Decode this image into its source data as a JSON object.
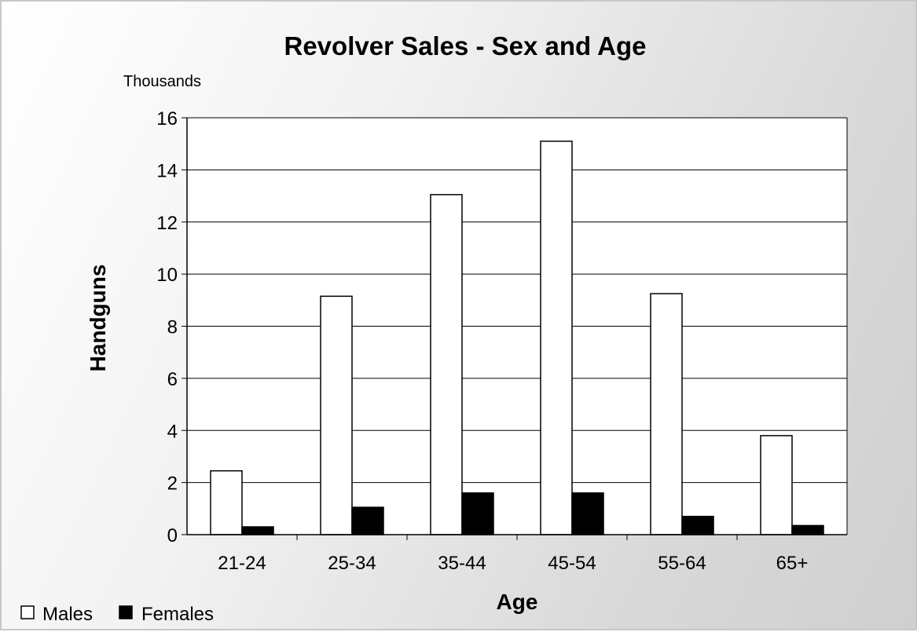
{
  "chart_data": {
    "type": "bar",
    "title": "Revolver Sales - Sex and Age",
    "unit_label": "Thousands",
    "xlabel": "Age",
    "ylabel": "Handguns",
    "categories": [
      "21-24",
      "25-34",
      "35-44",
      "45-54",
      "55-64",
      "65+"
    ],
    "series": [
      {
        "name": "Males",
        "values": [
          2.45,
          9.15,
          13.05,
          15.1,
          9.25,
          3.8
        ],
        "color": "#ffffff"
      },
      {
        "name": "Females",
        "values": [
          0.3,
          1.05,
          1.6,
          1.6,
          0.7,
          0.35
        ],
        "color": "#000000"
      }
    ],
    "ylim": [
      0,
      16
    ],
    "yticks": [
      "0",
      "2",
      "4",
      "6",
      "8",
      "10",
      "12",
      "14",
      "16"
    ],
    "grid": true,
    "legend_position": "bottom-left"
  }
}
